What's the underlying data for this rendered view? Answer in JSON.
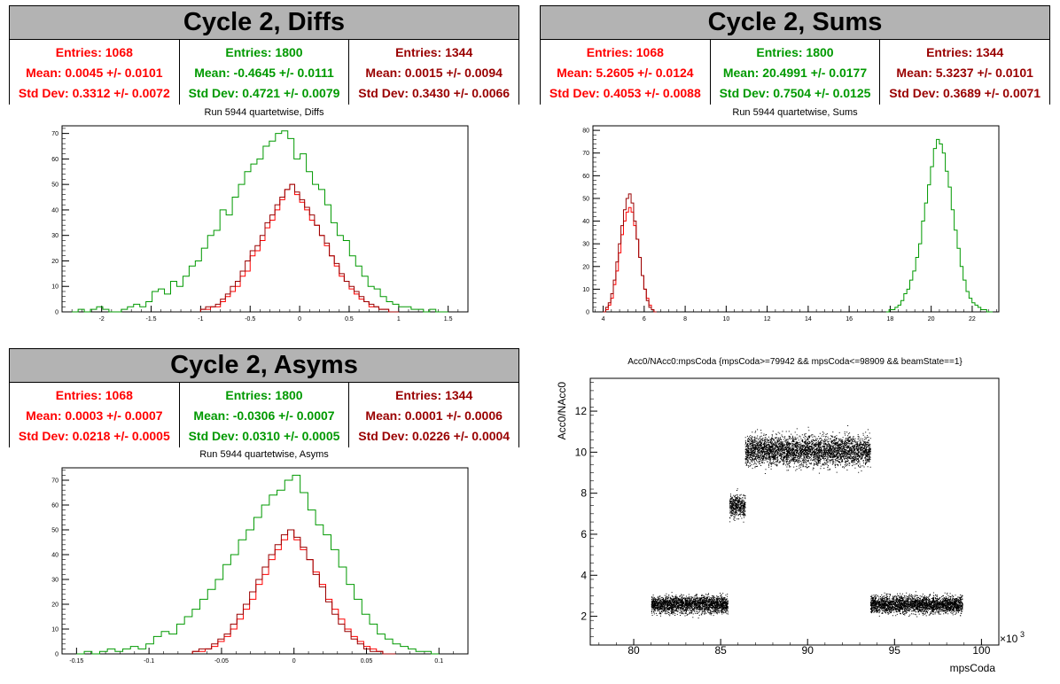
{
  "panels": {
    "diffs": {
      "title": "Cycle 2, Diffs",
      "stats": [
        {
          "entries": "Entries: 1068",
          "mean": "Mean: 0.0045 +/- 0.0101",
          "stddev": "Std Dev: 0.3312 +/- 0.0072",
          "color": "#ff0000"
        },
        {
          "entries": "Entries: 1800",
          "mean": "Mean: -0.4645 +/- 0.0111",
          "stddev": "Std Dev: 0.4721 +/- 0.0079",
          "color": "#009900"
        },
        {
          "entries": "Entries: 1344",
          "mean": "Mean: 0.0015 +/- 0.0094",
          "stddev": "Std Dev: 0.3430 +/- 0.0066",
          "color": "#990000"
        }
      ],
      "plot_title": "Run 5944 quartetwise, Diffs"
    },
    "sums": {
      "title": "Cycle 2, Sums",
      "stats": [
        {
          "entries": "Entries: 1068",
          "mean": "Mean: 5.2605 +/- 0.0124",
          "stddev": "Std Dev: 0.4053 +/- 0.0088",
          "color": "#ff0000"
        },
        {
          "entries": "Entries: 1800",
          "mean": "Mean: 20.4991 +/- 0.0177",
          "stddev": "Std Dev: 0.7504 +/- 0.0125",
          "color": "#009900"
        },
        {
          "entries": "Entries: 1344",
          "mean": "Mean: 5.3237 +/- 0.0101",
          "stddev": "Std Dev: 0.3689 +/- 0.0071",
          "color": "#990000"
        }
      ],
      "plot_title": "Run 5944 quartetwise, Sums"
    },
    "asyms": {
      "title": "Cycle 2, Asyms",
      "stats": [
        {
          "entries": "Entries: 1068",
          "mean": "Mean: 0.0003 +/- 0.0007",
          "stddev": "Std Dev: 0.0218 +/- 0.0005",
          "color": "#ff0000"
        },
        {
          "entries": "Entries: 1800",
          "mean": "Mean: -0.0306 +/- 0.0007",
          "stddev": "Std Dev: 0.0310 +/- 0.0005",
          "color": "#009900"
        },
        {
          "entries": "Entries: 1344",
          "mean": "Mean: 0.0001 +/- 0.0006",
          "stddev": "Std Dev: 0.0226 +/- 0.0004",
          "color": "#990000"
        }
      ],
      "plot_title": "Run 5944 quartetwise, Asyms"
    },
    "scatter": {
      "plot_title": "Acc0/NAcc0:mpsCoda {mpsCoda>=79942 && mpsCoda<=98909 && beamState==1}",
      "xlabel": "mpsCoda",
      "ylabel": "Acc0/NAcc0",
      "xexp": "×10",
      "xexp_power": "3"
    }
  },
  "chart_data": [
    {
      "type": "bar",
      "title": "Run 5944 quartetwise, Diffs",
      "xlim": [
        -2.4,
        1.7
      ],
      "ylim": [
        0,
        73
      ],
      "xticks": [
        -2,
        -1.5,
        -1,
        -0.5,
        0,
        0.5,
        1,
        1.5
      ],
      "xtick_labels": [
        "-2",
        "-1.5",
        "-1",
        "-0.5",
        "0",
        "0.5",
        "1",
        "1.5"
      ],
      "yticks": [
        0,
        10,
        20,
        30,
        40,
        50,
        60,
        70
      ],
      "ytick_labels": [
        "0",
        "10",
        "20",
        "30",
        "40",
        "50",
        "60",
        "70"
      ],
      "series": [
        {
          "color": "#009900",
          "x_range": [
            -2.3,
            1.5
          ],
          "values": [
            0,
            1,
            0,
            1,
            2,
            1,
            0,
            0,
            1,
            2,
            3,
            2,
            4,
            8,
            9,
            7,
            12,
            10,
            14,
            18,
            20,
            25,
            30,
            32,
            40,
            38,
            45,
            50,
            55,
            58,
            60,
            65,
            67,
            70,
            71,
            68,
            60,
            62,
            55,
            50,
            48,
            42,
            35,
            30,
            28,
            22,
            18,
            14,
            10,
            9,
            6,
            4,
            3,
            2,
            2,
            1,
            1,
            0,
            1,
            0,
            0
          ]
        },
        {
          "color": "#ff0000",
          "x_range": [
            -1.0,
            1.0
          ],
          "values": [
            1,
            1,
            2,
            2,
            4,
            6,
            8,
            10,
            14,
            16,
            22,
            24,
            28,
            33,
            36,
            40,
            44,
            48,
            50,
            46,
            43,
            40,
            36,
            34,
            30,
            26,
            22,
            18,
            14,
            12,
            9,
            7,
            5,
            4,
            2,
            2,
            1,
            1,
            0,
            0
          ]
        },
        {
          "color": "#990000",
          "x_range": [
            -1.0,
            1.0
          ],
          "values": [
            1,
            2,
            2,
            3,
            5,
            7,
            10,
            12,
            16,
            20,
            24,
            26,
            30,
            35,
            38,
            42,
            45,
            48,
            50,
            47,
            44,
            41,
            38,
            34,
            30,
            27,
            22,
            19,
            15,
            12,
            10,
            8,
            6,
            4,
            3,
            2,
            1,
            1,
            0,
            0
          ]
        }
      ]
    },
    {
      "type": "bar",
      "title": "Run 5944 quartetwise, Sums",
      "xlim": [
        3.5,
        23.3
      ],
      "ylim": [
        0,
        82
      ],
      "xticks": [
        4,
        6,
        8,
        10,
        12,
        14,
        16,
        18,
        20,
        22
      ],
      "xtick_labels": [
        "4",
        "6",
        "8",
        "10",
        "12",
        "14",
        "16",
        "18",
        "20",
        "22"
      ],
      "yticks": [
        0,
        10,
        20,
        30,
        40,
        50,
        60,
        70,
        80
      ],
      "ytick_labels": [
        "0",
        "10",
        "20",
        "30",
        "40",
        "50",
        "60",
        "70",
        "80"
      ],
      "series": [
        {
          "color": "#009900",
          "x_range": [
            17.8,
            23.0
          ],
          "values": [
            0,
            1,
            1,
            2,
            3,
            5,
            8,
            10,
            14,
            18,
            24,
            30,
            40,
            48,
            56,
            64,
            72,
            76,
            74,
            70,
            62,
            55,
            45,
            36,
            28,
            20,
            14,
            9,
            6,
            4,
            3,
            2,
            1,
            1,
            0,
            0
          ]
        },
        {
          "color": "#ff0000",
          "x_range": [
            4.0,
            6.6
          ],
          "values": [
            0,
            1,
            3,
            6,
            12,
            18,
            26,
            34,
            40,
            44,
            46,
            44,
            38,
            32,
            24,
            16,
            10,
            6,
            3,
            1,
            0
          ]
        },
        {
          "color": "#990000",
          "x_range": [
            4.0,
            6.6
          ],
          "values": [
            0,
            2,
            4,
            8,
            14,
            22,
            30,
            38,
            45,
            50,
            52,
            48,
            40,
            32,
            24,
            16,
            10,
            5,
            2,
            1,
            0
          ]
        }
      ]
    },
    {
      "type": "bar",
      "title": "Run 5944 quartetwise, Asyms",
      "xlim": [
        -0.16,
        0.12
      ],
      "ylim": [
        0,
        75
      ],
      "xticks": [
        -0.15,
        -0.1,
        -0.05,
        0,
        0.05,
        0.1
      ],
      "xtick_labels": [
        "-0.15",
        "-0.1",
        "-0.05",
        "0",
        "0.05",
        "0.1"
      ],
      "yticks": [
        0,
        10,
        20,
        30,
        40,
        50,
        60,
        70
      ],
      "ytick_labels": [
        "0",
        "10",
        "20",
        "30",
        "40",
        "50",
        "60",
        "70"
      ],
      "series": [
        {
          "color": "#009900",
          "x_range": [
            -0.15,
            0.1
          ],
          "values": [
            0,
            1,
            0,
            1,
            2,
            1,
            2,
            3,
            2,
            4,
            7,
            9,
            8,
            12,
            15,
            18,
            22,
            26,
            30,
            36,
            40,
            46,
            50,
            55,
            60,
            64,
            66,
            70,
            72,
            65,
            58,
            52,
            48,
            42,
            35,
            28,
            22,
            16,
            12,
            8,
            6,
            4,
            3,
            2,
            1,
            1,
            0
          ]
        },
        {
          "color": "#ff0000",
          "x_range": [
            -0.07,
            0.07
          ],
          "values": [
            1,
            1,
            2,
            3,
            5,
            7,
            10,
            14,
            18,
            22,
            28,
            32,
            38,
            42,
            46,
            50,
            46,
            42,
            38,
            33,
            28,
            22,
            18,
            14,
            10,
            7,
            5,
            3,
            2,
            1,
            0,
            0
          ]
        },
        {
          "color": "#990000",
          "x_range": [
            -0.07,
            0.07
          ],
          "values": [
            1,
            2,
            2,
            4,
            6,
            8,
            12,
            16,
            20,
            25,
            30,
            35,
            40,
            44,
            48,
            50,
            47,
            43,
            38,
            32,
            27,
            21,
            16,
            12,
            9,
            6,
            4,
            2,
            1,
            1,
            0,
            0
          ]
        }
      ]
    },
    {
      "type": "scatter",
      "title": "Acc0/NAcc0:mpsCoda {mpsCoda>=79942 && mpsCoda<=98909 && beamState==1}",
      "xlabel": "mpsCoda",
      "ylabel": "Acc0/NAcc0",
      "xlim": [
        77.5,
        101
      ],
      "ylim": [
        0.6,
        13.6
      ],
      "x_multiplier": "×10^3",
      "xticks": [
        80,
        85,
        90,
        95,
        100
      ],
      "xtick_labels": [
        "80",
        "85",
        "90",
        "95",
        "100"
      ],
      "yticks": [
        2,
        4,
        6,
        8,
        10,
        12
      ],
      "ytick_labels": [
        "2",
        "4",
        "6",
        "8",
        "10",
        "12"
      ],
      "clusters": [
        {
          "x": [
            81.0,
            85.4
          ],
          "y_center": 2.6,
          "y_spread": 0.35
        },
        {
          "x": [
            85.5,
            86.4
          ],
          "y_center": 7.4,
          "y_spread": 0.45
        },
        {
          "x": [
            86.4,
            93.6
          ],
          "y_center": 10.1,
          "y_spread": 0.6
        },
        {
          "x": [
            93.6,
            98.9
          ],
          "y_center": 2.6,
          "y_spread": 0.35
        }
      ]
    }
  ]
}
